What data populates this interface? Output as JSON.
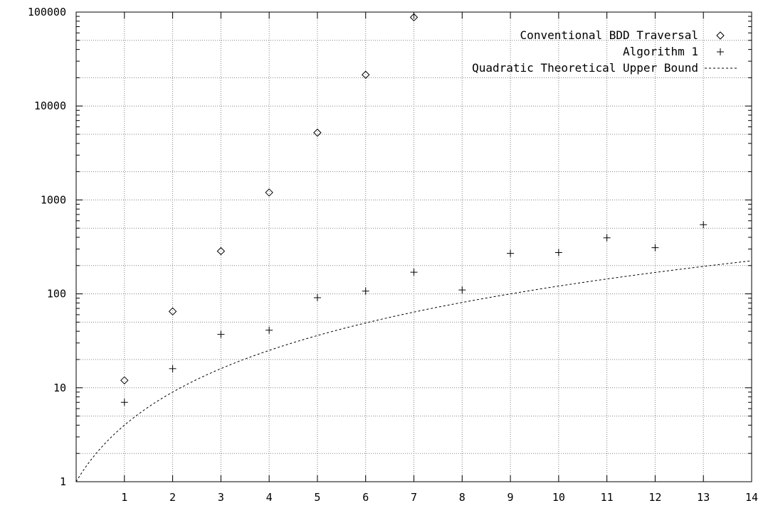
{
  "chart_data": {
    "type": "scatter",
    "title": "",
    "xlabel": "",
    "ylabel": "",
    "xlim": [
      0,
      14
    ],
    "ylim": [
      1,
      100000
    ],
    "yscale": "log",
    "grid": true,
    "legend_position": "top-right",
    "x_ticks": [
      "1",
      "2",
      "3",
      "4",
      "5",
      "6",
      "7",
      "8",
      "9",
      "10",
      "11",
      "12",
      "13",
      "14"
    ],
    "y_ticks": [
      "1",
      "10",
      "100",
      "1000",
      "10000",
      "100000"
    ],
    "series": [
      {
        "name": "Conventional BDD Traversal",
        "marker": "diamond",
        "x": [
          1,
          2,
          3,
          4,
          5,
          6,
          7
        ],
        "y": [
          12,
          65,
          285,
          1200,
          5200,
          21500,
          88000
        ]
      },
      {
        "name": "Algorithm 1",
        "marker": "plus",
        "x": [
          1,
          2,
          3,
          4,
          5,
          6,
          7,
          8,
          9,
          10,
          11,
          12,
          13
        ],
        "y": [
          7,
          16,
          37,
          41,
          91,
          107,
          170,
          110,
          270,
          275,
          395,
          310,
          545
        ]
      },
      {
        "name": "Quadratic Theoretical Upper Bound",
        "marker": "dotted-line",
        "function": "y = (x+1)^2",
        "x": [
          0,
          1,
          2,
          3,
          4,
          5,
          6,
          7,
          8,
          9,
          10,
          11,
          12,
          13,
          14
        ],
        "y": [
          1,
          4,
          9,
          16,
          25,
          36,
          49,
          64,
          81,
          100,
          121,
          144,
          169,
          196,
          225
        ]
      }
    ]
  }
}
